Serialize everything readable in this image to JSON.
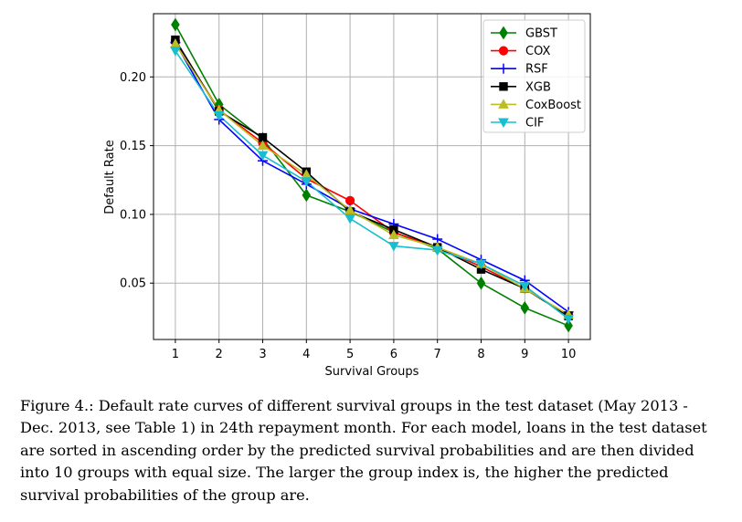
{
  "chart_data": {
    "type": "line",
    "title": "",
    "xlabel": "Survival Groups",
    "ylabel": "Default Rate",
    "x": [
      1,
      2,
      3,
      4,
      5,
      6,
      7,
      8,
      9,
      10
    ],
    "xlim": [
      0.5,
      10.5
    ],
    "ylim": [
      0.009,
      0.246
    ],
    "yticks": [
      0.05,
      0.1,
      0.15,
      0.2
    ],
    "ytick_labels": [
      "0.05",
      "0.10",
      "0.15",
      "0.20"
    ],
    "xtick_labels": [
      "1",
      "2",
      "3",
      "4",
      "5",
      "6",
      "7",
      "8",
      "9",
      "10"
    ],
    "grid": true,
    "legend_position": "top-right",
    "series": [
      {
        "name": "GBST",
        "color": "#008000",
        "marker": "diamond",
        "values": [
          0.238,
          0.18,
          0.155,
          0.114,
          0.102,
          0.087,
          0.075,
          0.05,
          0.032,
          0.019
        ]
      },
      {
        "name": "COX",
        "color": "#ff0000",
        "marker": "circle",
        "values": [
          0.226,
          0.176,
          0.152,
          0.126,
          0.11,
          0.087,
          0.076,
          0.062,
          0.046,
          0.026
        ]
      },
      {
        "name": "RSF",
        "color": "#0000ff",
        "marker": "plus",
        "values": [
          0.225,
          0.169,
          0.139,
          0.122,
          0.104,
          0.093,
          0.082,
          0.067,
          0.052,
          0.029
        ]
      },
      {
        "name": "XGB",
        "color": "#000000",
        "marker": "square",
        "values": [
          0.227,
          0.175,
          0.156,
          0.131,
          0.102,
          0.089,
          0.076,
          0.06,
          0.046,
          0.026
        ]
      },
      {
        "name": "CoxBoost",
        "color": "#bcbd22",
        "marker": "triangle-up",
        "values": [
          0.224,
          0.176,
          0.15,
          0.129,
          0.103,
          0.085,
          0.076,
          0.064,
          0.046,
          0.027
        ]
      },
      {
        "name": "CIF",
        "color": "#17becf",
        "marker": "triangle-down",
        "values": [
          0.219,
          0.172,
          0.143,
          0.124,
          0.097,
          0.077,
          0.074,
          0.064,
          0.048,
          0.024
        ]
      }
    ]
  },
  "caption": {
    "lines": [
      "Figure 4.: Default rate curves of different survival groups in the test dataset (May 2013 -",
      "Dec. 2013, see Table 1) in 24th repayment month. For each model, loans in the test dataset",
      "are sorted in ascending order by the predicted survival probabilities and are then divided",
      "into 10 groups with equal size. The larger the group index is, the higher the predicted",
      "survival probabilities of the group are."
    ]
  }
}
